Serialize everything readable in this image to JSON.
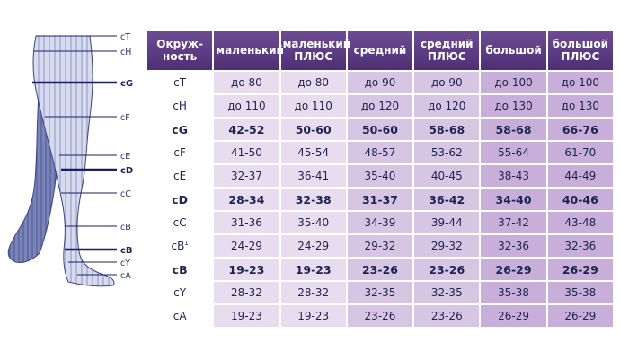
{
  "diagram": {
    "labels": [
      "cT",
      "cH",
      "cG",
      "cF",
      "cE",
      "cD",
      "cC",
      "cB",
      "cB",
      "cY",
      "cA"
    ]
  },
  "table": {
    "header_first": "Окруж-ность",
    "columns": [
      "маленький",
      "маленький ПЛЮС",
      "средний",
      "средний ПЛЮС",
      "большой",
      "большой ПЛЮС"
    ],
    "rows": [
      {
        "measure": "cT",
        "sup": "",
        "values": [
          "до 80",
          "до 80",
          "до 90",
          "до 90",
          "до 100",
          "до 100"
        ]
      },
      {
        "measure": "cH",
        "sup": "",
        "values": [
          "до 110",
          "до 110",
          "до 120",
          "до 120",
          "до 130",
          "до 130"
        ]
      },
      {
        "measure": "cG",
        "sup": "",
        "values": [
          "42-52",
          "50-60",
          "50-60",
          "58-68",
          "58-68",
          "66-76"
        ]
      },
      {
        "measure": "cF",
        "sup": "",
        "values": [
          "41-50",
          "45-54",
          "48-57",
          "53-62",
          "55-64",
          "61-70"
        ]
      },
      {
        "measure": "cE",
        "sup": "",
        "values": [
          "32-37",
          "36-41",
          "35-40",
          "40-45",
          "38-43",
          "44-49"
        ]
      },
      {
        "measure": "cD",
        "sup": "",
        "values": [
          "28-34",
          "32-38",
          "31-37",
          "36-42",
          "34-40",
          "40-46"
        ]
      },
      {
        "measure": "cC",
        "sup": "",
        "values": [
          "31-36",
          "35-40",
          "34-39",
          "39-44",
          "37-42",
          "43-48"
        ]
      },
      {
        "measure": "cB",
        "sup": "1",
        "values": [
          "24-29",
          "24-29",
          "29-32",
          "29-32",
          "32-36",
          "32-36"
        ]
      },
      {
        "measure": "cB",
        "sup": "",
        "values": [
          "19-23",
          "19-23",
          "23-26",
          "23-26",
          "26-29",
          "26-29"
        ]
      },
      {
        "measure": "cY",
        "sup": "",
        "values": [
          "28-32",
          "28-32",
          "32-35",
          "32-35",
          "35-38",
          "35-38"
        ]
      },
      {
        "measure": "cA",
        "sup": "",
        "values": [
          "19-23",
          "19-23",
          "23-26",
          "23-26",
          "26-29",
          "26-29"
        ]
      }
    ]
  },
  "colors": {
    "header": "#5a3a80",
    "col_light": "#e8dcef",
    "col_mid": "#d7c5e4",
    "col_dark": "#c7afd9",
    "text": "#1e2450"
  }
}
